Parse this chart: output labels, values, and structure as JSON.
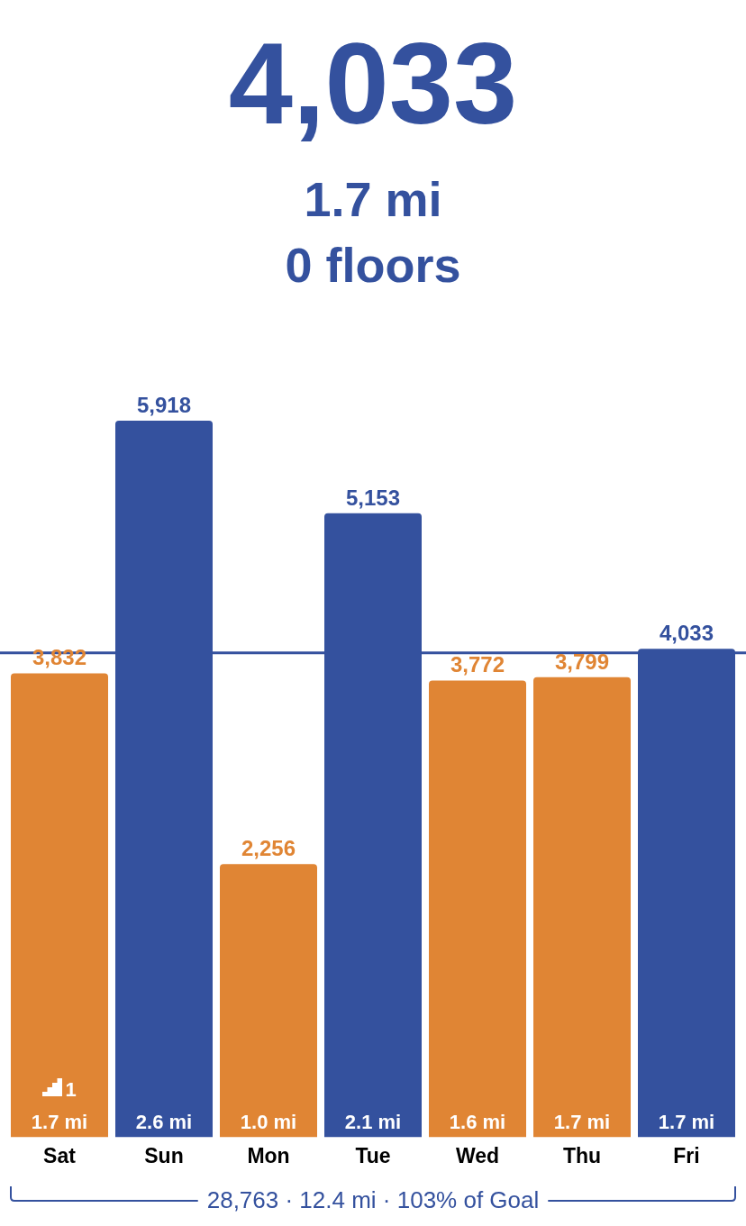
{
  "chart_data": {
    "type": "bar",
    "title": "4,033",
    "subtitle": "1.7 mi",
    "categories": [
      "Sat",
      "Sun",
      "Mon",
      "Tue",
      "Wed",
      "Thu",
      "Fri"
    ],
    "values": [
      3832,
      5918,
      2256,
      5153,
      3772,
      3799,
      4033
    ],
    "value_labels": [
      "3,832",
      "5,918",
      "2,256",
      "5,153",
      "3,772",
      "3,799",
      "4,033"
    ],
    "colors": [
      "#e08534",
      "#34519e",
      "#e08534",
      "#34519e",
      "#e08534",
      "#e08534",
      "#34519e"
    ],
    "grid": false,
    "legend": false,
    "tick_labels": "x",
    "ref_lines": [
      {
        "axis": "y",
        "value": 4000,
        "color": "#34519e"
      }
    ],
    "annotations": [
      "0 floors",
      "28,763 · 12.4 mi · 103% of Goal",
      {
        "text": "1.7 mi",
        "x": "Sat",
        "y": 0
      },
      {
        "text": "2.6 mi",
        "x": "Sun",
        "y": 0
      },
      {
        "text": "1.0 mi",
        "x": "Mon",
        "y": 0
      },
      {
        "text": "2.1 mi",
        "x": "Tue",
        "y": 0
      },
      {
        "text": "1.6 mi",
        "x": "Wed",
        "y": 0
      },
      {
        "text": "1.7 mi",
        "x": "Thu",
        "y": 0
      },
      {
        "text": "1.7 mi",
        "x": "Fri",
        "y": 0
      },
      {
        "text": "1",
        "x": "Sat",
        "y": 0
      }
    ]
  }
}
